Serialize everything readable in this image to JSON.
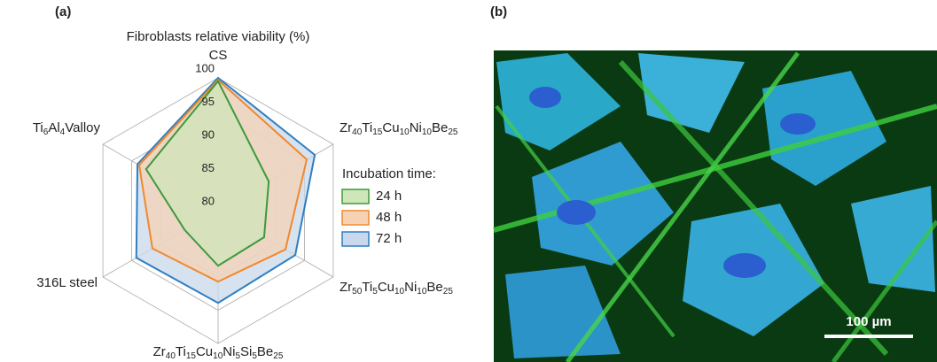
{
  "chart_data": {
    "type": "radar",
    "panel_label": "(a)",
    "title": "Fibroblasts relative viability (%)",
    "categories": [
      "CS",
      "Zr40Ti15Cu10Ni10Be25",
      "Zr50Ti5Cu10Ni10Be25",
      "Zr40Ti15Cu10Ni5Si5Be25",
      "316L steel",
      "Ti6Al4V alloy"
    ],
    "rlim": [
      80,
      100
    ],
    "rticks": [
      80,
      85,
      90,
      95,
      100
    ],
    "grid": true,
    "legend_title": "Incubation time:",
    "series": [
      {
        "name": "24 h",
        "color": "#3c9a3c",
        "fill": "#cfe6b9",
        "values": [
          99.5,
          88.8,
          88.0,
          88.3,
          85.8,
          92.5
        ]
      },
      {
        "name": "48 h",
        "color": "#f0892b",
        "fill": "#f5d2b4",
        "values": [
          99.7,
          95.4,
          91.7,
          90.7,
          91.4,
          93.7
        ]
      },
      {
        "name": "72 h",
        "color": "#2f7fc1",
        "fill": "#c9d8ec",
        "values": [
          100,
          96.8,
          93.4,
          93.9,
          94.2,
          94.0
        ]
      }
    ]
  },
  "image_panel": {
    "panel_label": "(b)",
    "scale_bar": "100 µm"
  }
}
